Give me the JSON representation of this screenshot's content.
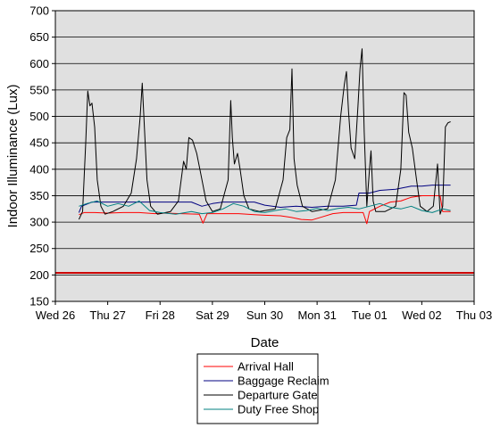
{
  "chart_data": {
    "type": "line",
    "title": "",
    "xlabel": "Date",
    "ylabel": "Indoor Illuminance (Lux)",
    "ylim": [
      150,
      700
    ],
    "yticks": [
      150,
      200,
      250,
      300,
      350,
      400,
      450,
      500,
      550,
      600,
      650,
      700
    ],
    "xlim": [
      0,
      7
    ],
    "xticks": [
      {
        "x": 0,
        "label": "Wed 26"
      },
      {
        "x": 1,
        "label": "Thu 27"
      },
      {
        "x": 2,
        "label": "Fri 28"
      },
      {
        "x": 3,
        "label": "Sat 29"
      },
      {
        "x": 4,
        "label": "Sun 30"
      },
      {
        "x": 5,
        "label": "Mon 31"
      },
      {
        "x": 6,
        "label": "Tue 01"
      },
      {
        "x": 7,
        "label": "Wed 02"
      },
      {
        "x": 8,
        "label": "Thu 03"
      }
    ],
    "grid": "horizontal",
    "plot_background": "#e0e0e0",
    "legend_position": "bottom",
    "reference_line": {
      "y": 204,
      "color": "#cc0000"
    },
    "series": [
      {
        "name": "Arrival Hall",
        "color": "#ff0000",
        "points": [
          [
            0.45,
            314
          ],
          [
            0.55,
            318
          ],
          [
            0.75,
            318
          ],
          [
            1.0,
            317
          ],
          [
            1.3,
            318
          ],
          [
            1.6,
            318
          ],
          [
            1.9,
            316
          ],
          [
            2.1,
            317
          ],
          [
            2.4,
            316
          ],
          [
            2.75,
            315
          ],
          [
            2.82,
            298
          ],
          [
            2.9,
            316
          ],
          [
            3.2,
            316
          ],
          [
            3.5,
            316
          ],
          [
            3.8,
            314
          ],
          [
            4.0,
            313
          ],
          [
            4.3,
            312
          ],
          [
            4.5,
            309
          ],
          [
            4.7,
            305
          ],
          [
            4.9,
            304
          ],
          [
            5.1,
            310
          ],
          [
            5.3,
            316
          ],
          [
            5.5,
            318
          ],
          [
            5.7,
            318
          ],
          [
            5.88,
            318
          ],
          [
            5.95,
            297
          ],
          [
            6.0,
            320
          ],
          [
            6.2,
            330
          ],
          [
            6.4,
            338
          ],
          [
            6.6,
            340
          ],
          [
            6.8,
            347
          ],
          [
            7.0,
            350
          ],
          [
            7.2,
            350
          ],
          [
            7.35,
            350
          ],
          [
            7.4,
            320
          ],
          [
            7.55,
            320
          ]
        ]
      },
      {
        "name": "Baggage Reclaim",
        "color": "#000080",
        "points": [
          [
            0.45,
            318
          ],
          [
            0.5,
            330
          ],
          [
            0.7,
            338
          ],
          [
            1.0,
            338
          ],
          [
            1.3,
            338
          ],
          [
            1.7,
            338
          ],
          [
            2.0,
            338
          ],
          [
            2.3,
            338
          ],
          [
            2.6,
            338
          ],
          [
            2.8,
            330
          ],
          [
            3.0,
            335
          ],
          [
            3.2,
            338
          ],
          [
            3.5,
            338
          ],
          [
            3.8,
            338
          ],
          [
            4.0,
            332
          ],
          [
            4.3,
            328
          ],
          [
            4.6,
            330
          ],
          [
            4.9,
            328
          ],
          [
            5.2,
            330
          ],
          [
            5.5,
            330
          ],
          [
            5.75,
            332
          ],
          [
            5.8,
            355
          ],
          [
            6.0,
            355
          ],
          [
            6.2,
            360
          ],
          [
            6.5,
            362
          ],
          [
            6.8,
            368
          ],
          [
            7.0,
            368
          ],
          [
            7.2,
            370
          ],
          [
            7.55,
            370
          ]
        ]
      },
      {
        "name": "Departure Gate",
        "color": "#000000",
        "points": [
          [
            0.45,
            305
          ],
          [
            0.52,
            320
          ],
          [
            0.58,
            450
          ],
          [
            0.62,
            548
          ],
          [
            0.66,
            520
          ],
          [
            0.7,
            525
          ],
          [
            0.75,
            480
          ],
          [
            0.8,
            380
          ],
          [
            0.87,
            330
          ],
          [
            0.95,
            315
          ],
          [
            1.1,
            320
          ],
          [
            1.3,
            330
          ],
          [
            1.45,
            355
          ],
          [
            1.55,
            420
          ],
          [
            1.62,
            500
          ],
          [
            1.66,
            563
          ],
          [
            1.7,
            480
          ],
          [
            1.75,
            380
          ],
          [
            1.82,
            330
          ],
          [
            1.95,
            315
          ],
          [
            2.2,
            320
          ],
          [
            2.35,
            340
          ],
          [
            2.45,
            415
          ],
          [
            2.5,
            400
          ],
          [
            2.55,
            460
          ],
          [
            2.62,
            455
          ],
          [
            2.7,
            430
          ],
          [
            2.78,
            390
          ],
          [
            2.88,
            340
          ],
          [
            3.0,
            320
          ],
          [
            3.15,
            325
          ],
          [
            3.3,
            380
          ],
          [
            3.35,
            530
          ],
          [
            3.38,
            460
          ],
          [
            3.42,
            410
          ],
          [
            3.48,
            430
          ],
          [
            3.53,
            400
          ],
          [
            3.6,
            350
          ],
          [
            3.7,
            325
          ],
          [
            3.9,
            320
          ],
          [
            4.2,
            325
          ],
          [
            4.35,
            380
          ],
          [
            4.42,
            460
          ],
          [
            4.48,
            475
          ],
          [
            4.52,
            590
          ],
          [
            4.56,
            420
          ],
          [
            4.62,
            370
          ],
          [
            4.72,
            330
          ],
          [
            4.9,
            320
          ],
          [
            5.2,
            325
          ],
          [
            5.35,
            380
          ],
          [
            5.45,
            500
          ],
          [
            5.52,
            560
          ],
          [
            5.56,
            585
          ],
          [
            5.6,
            510
          ],
          [
            5.65,
            440
          ],
          [
            5.72,
            420
          ],
          [
            5.78,
            520
          ],
          [
            5.82,
            590
          ],
          [
            5.86,
            628
          ],
          [
            5.9,
            470
          ],
          [
            5.95,
            330
          ],
          [
            6.0,
            400
          ],
          [
            6.03,
            435
          ],
          [
            6.07,
            340
          ],
          [
            6.12,
            320
          ],
          [
            6.3,
            320
          ],
          [
            6.5,
            330
          ],
          [
            6.6,
            400
          ],
          [
            6.66,
            545
          ],
          [
            6.7,
            540
          ],
          [
            6.75,
            470
          ],
          [
            6.82,
            440
          ],
          [
            6.9,
            380
          ],
          [
            6.97,
            330
          ],
          [
            7.1,
            320
          ],
          [
            7.22,
            330
          ],
          [
            7.3,
            410
          ],
          [
            7.35,
            315
          ],
          [
            7.4,
            330
          ],
          [
            7.45,
            480
          ],
          [
            7.5,
            488
          ],
          [
            7.55,
            490
          ]
        ]
      },
      {
        "name": "Duty Free Shop",
        "color": "#008080",
        "points": [
          [
            0.45,
            330
          ],
          [
            0.6,
            335
          ],
          [
            0.8,
            340
          ],
          [
            1.0,
            330
          ],
          [
            1.2,
            335
          ],
          [
            1.4,
            330
          ],
          [
            1.6,
            340
          ],
          [
            1.8,
            322
          ],
          [
            2.0,
            318
          ],
          [
            2.3,
            315
          ],
          [
            2.6,
            320
          ],
          [
            2.8,
            316
          ],
          [
            3.0,
            318
          ],
          [
            3.2,
            325
          ],
          [
            3.4,
            335
          ],
          [
            3.6,
            330
          ],
          [
            3.8,
            320
          ],
          [
            4.0,
            318
          ],
          [
            4.2,
            322
          ],
          [
            4.4,
            325
          ],
          [
            4.6,
            320
          ],
          [
            4.8,
            322
          ],
          [
            5.0,
            326
          ],
          [
            5.2,
            322
          ],
          [
            5.4,
            326
          ],
          [
            5.6,
            328
          ],
          [
            5.8,
            325
          ],
          [
            6.0,
            330
          ],
          [
            6.2,
            335
          ],
          [
            6.4,
            328
          ],
          [
            6.6,
            325
          ],
          [
            6.8,
            330
          ],
          [
            7.0,
            322
          ],
          [
            7.2,
            318
          ],
          [
            7.4,
            325
          ],
          [
            7.55,
            322
          ]
        ]
      }
    ]
  }
}
